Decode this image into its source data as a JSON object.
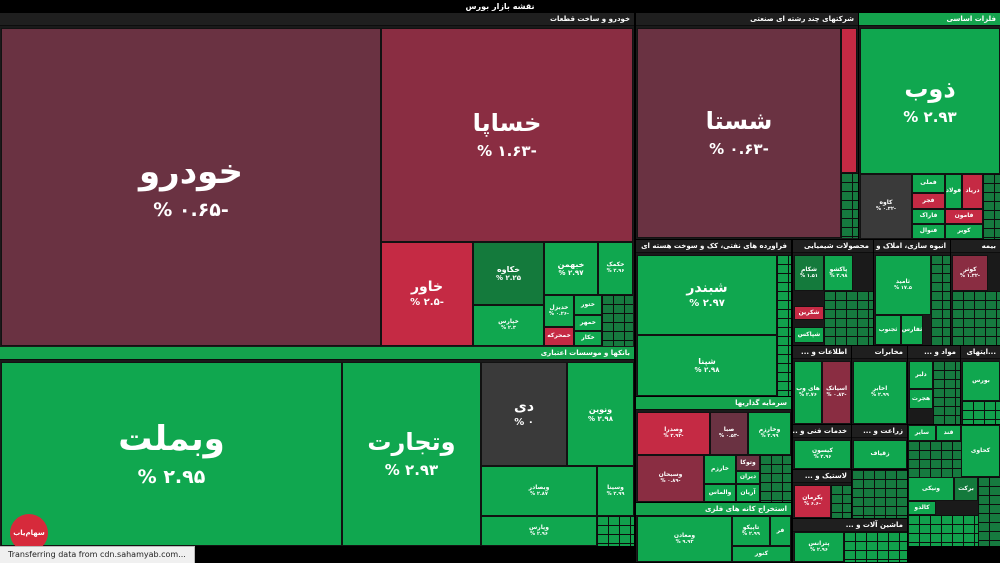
{
  "title": "نقشه بازار بورس",
  "status_text": "Transferring data from cdn.sahamyab.com...",
  "logo_text": "سهام‌یاب",
  "sectors": {
    "khodro": "خودرو و ساخت قطعات",
    "banks": "بانکها و موسسات اعتباری",
    "multi": "شرکتهای چند رشته ای صنعتی",
    "metals": "فلزات اساسی",
    "refinery": "فراورده های نفتی، کک و سوخت هسته ای",
    "chemical": "محصولات شیمیایی",
    "realestate": "انبوه سازی، املاک و مستغلات",
    "insurance": "بیمه",
    "investment": "سرمایه گذاریها",
    "mining": "استخراج کانه های فلزی",
    "it": "اطلاعات و ...",
    "telecom": "مخابرات",
    "food": "مواد و ...",
    "pharma": "...ایتهای",
    "tech": "خدمات فنی و ...",
    "agri": "زراعت و ...",
    "rubber": "لاستیک و ...",
    "machinery": "ماشین آلات و ..."
  },
  "tiles": {
    "khodro": {
      "sym": "خودرو",
      "pct": "-۰.۶۵ %"
    },
    "khapa": {
      "sym": "خساپا",
      "pct": "-۱.۶۳ %"
    },
    "khavar": {
      "sym": "خاور",
      "pct": "-۲.۵ %"
    },
    "khakave": {
      "sym": "خکاوه",
      "pct": "۲.۲۵ %"
    },
    "khbahman": {
      "sym": "خبهمن",
      "pct": "۲.۹۷ %"
    },
    "khzamia": {
      "sym": "خکمک",
      "pct": "۲.۹۶ %"
    },
    "kharis": {
      "sym": "خپارس",
      "pct": "۲.۳ %"
    },
    "khdizel": {
      "sym": "خدیزل",
      "pct": "-۰.۲۶ %"
    },
    "khtoor": {
      "sym": "ختور",
      "pct": ""
    },
    "khmehr": {
      "sym": "خمهر",
      "pct": ""
    },
    "khmoharka": {
      "sym": "خمحرکه",
      "pct": ""
    },
    "khakar": {
      "sym": "خکار",
      "pct": ""
    },
    "vbmellat": {
      "sym": "وبملت",
      "pct": "۲.۹۵ %"
    },
    "vtejarat": {
      "sym": "وتجارت",
      "pct": "۲.۹۳ %"
    },
    "di": {
      "sym": "دی",
      "pct": "۰ %"
    },
    "vnovin": {
      "sym": "ونوین",
      "pct": "۲.۹۸ %"
    },
    "vbsader": {
      "sym": "وبصادر",
      "pct": "۲.۸۷ %"
    },
    "vsina": {
      "sym": "وسینا",
      "pct": "۲.۹۹ %"
    },
    "vpars": {
      "sym": "وپارس",
      "pct": "۲.۹۶ %"
    },
    "shasta": {
      "sym": "شستا",
      "pct": "-۰.۶۳ %"
    },
    "zob": {
      "sym": "ذوب",
      "pct": "۲.۹۳ %"
    },
    "kave": {
      "sym": "کاوه",
      "pct": "-۰.۳۲ %"
    },
    "fameli": {
      "sym": "فملی",
      "pct": ""
    },
    "fajr": {
      "sym": "فجر",
      "pct": ""
    },
    "faraz": {
      "sym": "فاراک",
      "pct": ""
    },
    "fanval": {
      "sym": "فنوال",
      "pct": ""
    },
    "foolad": {
      "sym": "فولاد",
      "pct": ""
    },
    "daryad": {
      "sym": "دریاد",
      "pct": ""
    },
    "famon": {
      "sym": "فامون",
      "pct": ""
    },
    "kavir": {
      "sym": "کویر",
      "pct": ""
    },
    "shbandar": {
      "sym": "شبندر",
      "pct": "۲.۹۷ %"
    },
    "shpana": {
      "sym": "شپنا",
      "pct": "۲.۹۸ %"
    },
    "shekam": {
      "sym": "شکام",
      "pct": "۱.۵۱ %"
    },
    "paksho": {
      "sym": "پاکشو",
      "pct": "۲.۹۸ %"
    },
    "shkarin": {
      "sym": "شکرین",
      "pct": ""
    },
    "shpaxs": {
      "sym": "شپاکس",
      "pct": ""
    },
    "samid": {
      "sym": "ثامید",
      "pct": "۱۷.۵ %"
    },
    "sajnoob": {
      "sym": "ثجنوب",
      "pct": ""
    },
    "sfars": {
      "sym": "ثفارس",
      "pct": ""
    },
    "kosar": {
      "sym": "کوثر",
      "pct": "-۱.۳۲ %"
    },
    "vsadra": {
      "sym": "وصدرا",
      "pct": "-۳.۹۳ %"
    },
    "saba": {
      "sym": "صبا",
      "pct": "-۰.۵۳ %"
    },
    "vkharazm": {
      "sym": "وخارزم",
      "pct": "۲.۹۹ %"
    },
    "vsbhan": {
      "sym": "وسبحان",
      "pct": "-۰.۸۹ %"
    },
    "vtooka": {
      "sym": "وتوکا",
      "pct": ""
    },
    "kharazm": {
      "sym": "خارزم",
      "pct": ""
    },
    "valmas": {
      "sym": "والماس",
      "pct": ""
    },
    "arian": {
      "sym": "آریان",
      "pct": ""
    },
    "diran": {
      "sym": "دیران",
      "pct": ""
    },
    "vmaaden": {
      "sym": "ومعادن",
      "pct": "۹.۹۳ %"
    },
    "tapiko": {
      "sym": "تاپیکو",
      "pct": "۲.۹۹ %"
    },
    "far": {
      "sym": "فر",
      "pct": ""
    },
    "kenor": {
      "sym": "کنور",
      "pct": ""
    },
    "hiweb": {
      "sym": "های وب",
      "pct": "۲.۷۶ %"
    },
    "asiatek": {
      "sym": "اسیاتک",
      "pct": "-۰.۸۲ %"
    },
    "akhabar": {
      "sym": "اخابر",
      "pct": "۲.۹۹ %"
    },
    "kaysan": {
      "sym": "کیسون",
      "pct": "۲.۹۶ %"
    },
    "zaghe": {
      "sym": "زقیاف",
      "pct": ""
    },
    "ptayer": {
      "sym": "پکرمان",
      "pct": "-۶.۶ %"
    },
    "petrol": {
      "sym": "پترانس",
      "pct": "۲.۹۶ %"
    },
    "dalbar": {
      "sym": "دلبر",
      "pct": ""
    },
    "hejrat": {
      "sym": "هجرت",
      "pct": ""
    },
    "bors": {
      "sym": "بورس",
      "pct": ""
    },
    "ghand": {
      "sym": "قند",
      "pct": ""
    },
    "sabir": {
      "sym": "سایر",
      "pct": ""
    },
    "kehavi": {
      "sym": "کحاوی",
      "pct": ""
    },
    "vanikm": {
      "sym": "ونیکی",
      "pct": ""
    },
    "barka": {
      "sym": "برکت",
      "pct": ""
    },
    "kaldo": {
      "sym": "کالدو",
      "pct": ""
    }
  }
}
